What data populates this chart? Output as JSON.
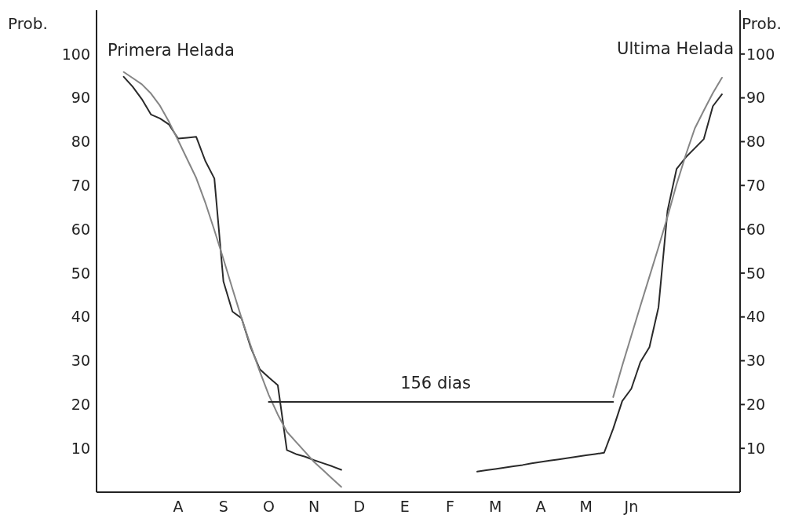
{
  "chart_data": {
    "type": "line",
    "ylabel": "Prob.",
    "y2label": "Prob.",
    "categories": [
      null,
      null,
      null,
      null,
      null,
      null,
      null,
      null,
      null,
      "A",
      null,
      null,
      null,
      null,
      "S",
      null,
      null,
      null,
      null,
      "O",
      null,
      null,
      null,
      null,
      "N",
      null,
      null,
      null,
      null,
      "D",
      null,
      null,
      null,
      null,
      "E",
      null,
      null,
      null,
      null,
      "F",
      null,
      null,
      null,
      null,
      "M",
      null,
      null,
      null,
      null,
      "A",
      null,
      null,
      null,
      null,
      "M",
      null,
      null,
      null,
      null,
      "Jn",
      null,
      null,
      null,
      null,
      null,
      null,
      null,
      null,
      null,
      null,
      null,
      null
    ],
    "ylim": [
      0,
      110
    ],
    "yticks": [
      10,
      20,
      30,
      40,
      50,
      60,
      70,
      80,
      90,
      100
    ],
    "y2lim": [
      0,
      110
    ],
    "y2ticks": [
      10,
      20,
      30,
      40,
      50,
      60,
      70,
      80,
      90,
      100
    ],
    "marker": "none",
    "line_style": "solid",
    "series": [
      {
        "color": "#2a2a2a",
        "values": [
          null,
          null,
          null,
          94.8,
          92.5,
          89.7,
          86.2,
          85.3,
          83.9,
          80.7,
          80.9,
          81.1,
          75.6,
          71.6,
          48.1,
          41.2,
          39.7,
          33.1,
          28.1,
          26.2,
          24.4,
          9.6,
          8.7,
          8.1,
          7.3,
          6.6,
          5.9,
          5.1,
          null,
          null,
          null,
          null,
          null,
          null,
          null,
          null,
          null,
          null,
          null,
          null,
          null,
          null,
          null,
          null,
          null,
          null,
          null,
          null,
          null,
          null,
          null,
          null,
          null,
          null,
          null,
          null,
          null,
          null,
          null,
          null,
          null,
          null,
          null,
          null,
          null,
          null,
          null,
          null,
          null,
          null,
          null,
          null
        ]
      },
      {
        "color": "#858585",
        "values": [
          null,
          null,
          null,
          95.9,
          94.5,
          93.1,
          91.0,
          88.2,
          84.5,
          80.3,
          76.0,
          71.7,
          66.1,
          59.8,
          53.2,
          46.4,
          39.7,
          33.5,
          27.6,
          22.2,
          17.7,
          13.8,
          11.5,
          9.2,
          6.9,
          5.0,
          3.1,
          1.2,
          null,
          null,
          null,
          null,
          null,
          null,
          null,
          null,
          null,
          null,
          null,
          null,
          null,
          null,
          null,
          null,
          null,
          null,
          null,
          null,
          null,
          null,
          null,
          null,
          null,
          null,
          null,
          null,
          null,
          null,
          null,
          null,
          null,
          null,
          null,
          null,
          null,
          null,
          null,
          null,
          null,
          null,
          null,
          null
        ]
      },
      {
        "color": "#2a2a2a",
        "values": [
          null,
          null,
          null,
          null,
          null,
          null,
          null,
          null,
          null,
          null,
          null,
          null,
          null,
          null,
          null,
          null,
          null,
          null,
          null,
          null,
          null,
          null,
          null,
          null,
          null,
          null,
          null,
          null,
          null,
          null,
          null,
          null,
          null,
          null,
          null,
          null,
          null,
          null,
          null,
          null,
          null,
          null,
          4.7,
          5.0,
          5.3,
          5.6,
          5.9,
          6.2,
          6.6,
          6.9,
          7.2,
          7.5,
          7.8,
          8.1,
          8.4,
          8.7,
          9.0,
          14.5,
          20.8,
          23.6,
          29.7,
          33.1,
          42.2,
          64.3,
          73.8,
          76.4,
          78.5,
          80.6,
          88.1,
          90.8,
          null,
          null
        ]
      },
      {
        "color": "#858585",
        "values": [
          null,
          null,
          null,
          null,
          null,
          null,
          null,
          null,
          null,
          null,
          null,
          null,
          null,
          null,
          null,
          null,
          null,
          null,
          null,
          null,
          null,
          null,
          null,
          null,
          null,
          null,
          null,
          null,
          null,
          null,
          null,
          null,
          null,
          null,
          null,
          null,
          null,
          null,
          null,
          null,
          null,
          null,
          null,
          null,
          null,
          null,
          null,
          null,
          null,
          null,
          null,
          null,
          null,
          null,
          null,
          null,
          null,
          21.7,
          28.9,
          35.7,
          42.5,
          49.2,
          55.9,
          62.9,
          70.3,
          76.9,
          83.0,
          87.1,
          91.1,
          94.6,
          null,
          null
        ]
      },
      {
        "color": "#2a2a2a",
        "values": [
          null,
          null,
          null,
          null,
          null,
          null,
          null,
          null,
          null,
          null,
          null,
          null,
          null,
          null,
          null,
          null,
          null,
          null,
          null,
          20.6,
          20.6,
          20.6,
          20.6,
          20.6,
          20.6,
          20.6,
          20.6,
          20.6,
          20.6,
          20.6,
          20.6,
          20.6,
          20.6,
          20.6,
          20.6,
          20.6,
          20.6,
          20.6,
          20.6,
          20.6,
          20.6,
          20.6,
          20.6,
          20.6,
          20.6,
          20.6,
          20.6,
          20.6,
          20.6,
          20.6,
          20.6,
          20.6,
          20.6,
          20.6,
          20.6,
          20.6,
          20.6,
          20.6,
          null,
          null,
          null,
          null,
          null,
          null,
          null,
          null,
          null,
          null,
          null,
          null,
          null,
          null
        ]
      }
    ],
    "annotations": [
      "Primera Helada",
      "Ultima Helada",
      "156 dias"
    ]
  }
}
